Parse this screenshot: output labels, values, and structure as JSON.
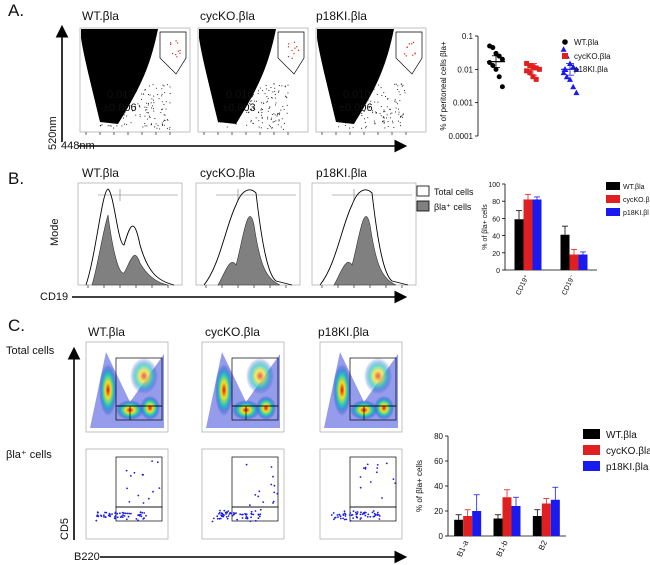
{
  "colors": {
    "wt": "#000000",
    "cyc": "#e02020",
    "p18": "#1a1aee",
    "hist_fill": "#808080"
  },
  "panel_a": {
    "label": "A.",
    "plot_titles": [
      "WT.βla",
      "cycKO.βla",
      "p18KI.βla"
    ],
    "values": [
      {
        "mean": "0.017",
        "sd": "±0.006"
      },
      {
        "mean": "0.010",
        "sd": "±0.003"
      },
      {
        "mean": "0.010",
        "sd": "±0.006"
      }
    ],
    "y_axis": "520nm",
    "x_axis": "448nm"
  },
  "panel_b": {
    "label": "B.",
    "plot_titles": [
      "WT.βla",
      "cycKO.βla",
      "p18KI.βla"
    ],
    "y_axis": "Mode",
    "x_axis": "CD19",
    "legend": [
      "Total cells",
      "βla⁺ cells"
    ]
  },
  "panel_c": {
    "label": "C.",
    "plot_titles": [
      "WT.βla",
      "cycKO.βla",
      "p18KI.βla"
    ],
    "row_labels": [
      "Total cells",
      "βla⁺ cells"
    ],
    "y_axis": "CD5",
    "x_axis": "B220"
  },
  "chart_data": [
    {
      "type": "scatter",
      "ylabel": "% of peritoneal cells βla+",
      "yscale": "log",
      "ylim": [
        0.0001,
        0.1
      ],
      "ytick_labels": [
        "0.1",
        "0.01",
        "0.001",
        "0.0001"
      ],
      "ytick_values": [
        0.1,
        0.01,
        0.001,
        0.0001
      ],
      "legend": [
        "WT.βla",
        "cycKO.βla",
        "p18KI.βla"
      ],
      "series": [
        {
          "name": "WT.βla",
          "marker": "circle",
          "values": [
            0.05,
            0.045,
            0.03,
            0.025,
            0.02,
            0.016,
            0.013,
            0.01,
            0.006,
            0.003
          ],
          "mean": 0.017
        },
        {
          "name": "cycKO.βla",
          "marker": "square",
          "values": [
            0.015,
            0.013,
            0.012,
            0.011,
            0.01,
            0.009,
            0.008,
            0.006,
            0.005
          ],
          "mean": 0.01
        },
        {
          "name": "p18KI.βla",
          "marker": "triangle",
          "values": [
            0.04,
            0.025,
            0.015,
            0.012,
            0.01,
            0.008,
            0.006,
            0.005,
            0.003,
            0.002
          ],
          "mean": 0.01
        }
      ]
    },
    {
      "type": "bar",
      "ylabel": "% of βla+ cells",
      "ylim": [
        0,
        100
      ],
      "yticks": [
        "0",
        "20",
        "40",
        "60",
        "80",
        "100"
      ],
      "categories": [
        "CD19⁺",
        "CD19⁻"
      ],
      "legend": [
        "WT.βla",
        "cycKO.β",
        "p18KI.βl"
      ],
      "series": [
        {
          "name": "WT.βla",
          "values": [
            59,
            41
          ],
          "errors": [
            10,
            10
          ]
        },
        {
          "name": "cycKO.βla",
          "values": [
            82,
            18
          ],
          "errors": [
            6,
            6
          ]
        },
        {
          "name": "p18KI.βla",
          "values": [
            82,
            18
          ],
          "errors": [
            3,
            3
          ]
        }
      ]
    },
    {
      "type": "bar",
      "ylabel": "% of βla+ cells",
      "ylim": [
        0,
        80
      ],
      "yticks": [
        "0",
        "20",
        "40",
        "60",
        "80"
      ],
      "categories": [
        "B1-a",
        "B1-b",
        "B2"
      ],
      "legend": [
        "WT.βla",
        "cycKO.βla",
        "p18KI.βla"
      ],
      "series": [
        {
          "name": "WT.βla",
          "values": [
            13,
            14,
            16
          ],
          "errors": [
            4,
            3,
            5
          ]
        },
        {
          "name": "cycKO.βla",
          "values": [
            16,
            31,
            26
          ],
          "errors": [
            5,
            6,
            4
          ]
        },
        {
          "name": "p18KI.βla",
          "values": [
            20,
            24,
            29
          ],
          "errors": [
            13,
            7,
            10
          ]
        }
      ]
    }
  ]
}
